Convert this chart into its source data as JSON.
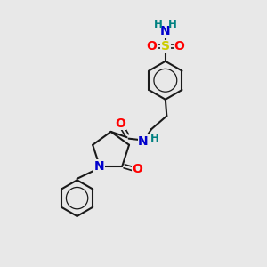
{
  "bg_color": "#e8e8e8",
  "bond_color": "#1a1a1a",
  "N_color": "#0000cc",
  "O_color": "#ff0000",
  "S_color": "#cccc00",
  "H_color": "#008080",
  "figsize": [
    3.0,
    3.0
  ],
  "dpi": 100,
  "xlim": [
    0,
    10
  ],
  "ylim": [
    0,
    10
  ]
}
